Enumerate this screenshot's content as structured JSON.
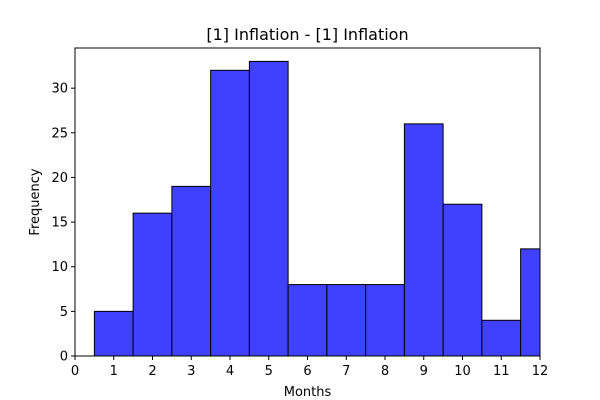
{
  "chart_data": {
    "type": "bar",
    "title": "[1] Inflation - [1] Inflation",
    "xlabel": "Months",
    "ylabel": "Frequency",
    "xlim": [
      0,
      12
    ],
    "ylim": [
      0,
      34.5
    ],
    "x_ticks": [
      0,
      1,
      2,
      3,
      4,
      5,
      6,
      7,
      8,
      9,
      10,
      11,
      12
    ],
    "y_ticks": [
      0,
      5,
      10,
      15,
      20,
      25,
      30
    ],
    "grid": false,
    "bin_width": 1,
    "categories": [
      1,
      2,
      3,
      4,
      5,
      6,
      7,
      8,
      9,
      10,
      11,
      12
    ],
    "values": [
      5,
      16,
      19,
      32,
      33,
      8,
      8,
      8,
      26,
      17,
      4,
      12
    ],
    "bar_color": "#4040ff",
    "edge_color": "#000000"
  }
}
